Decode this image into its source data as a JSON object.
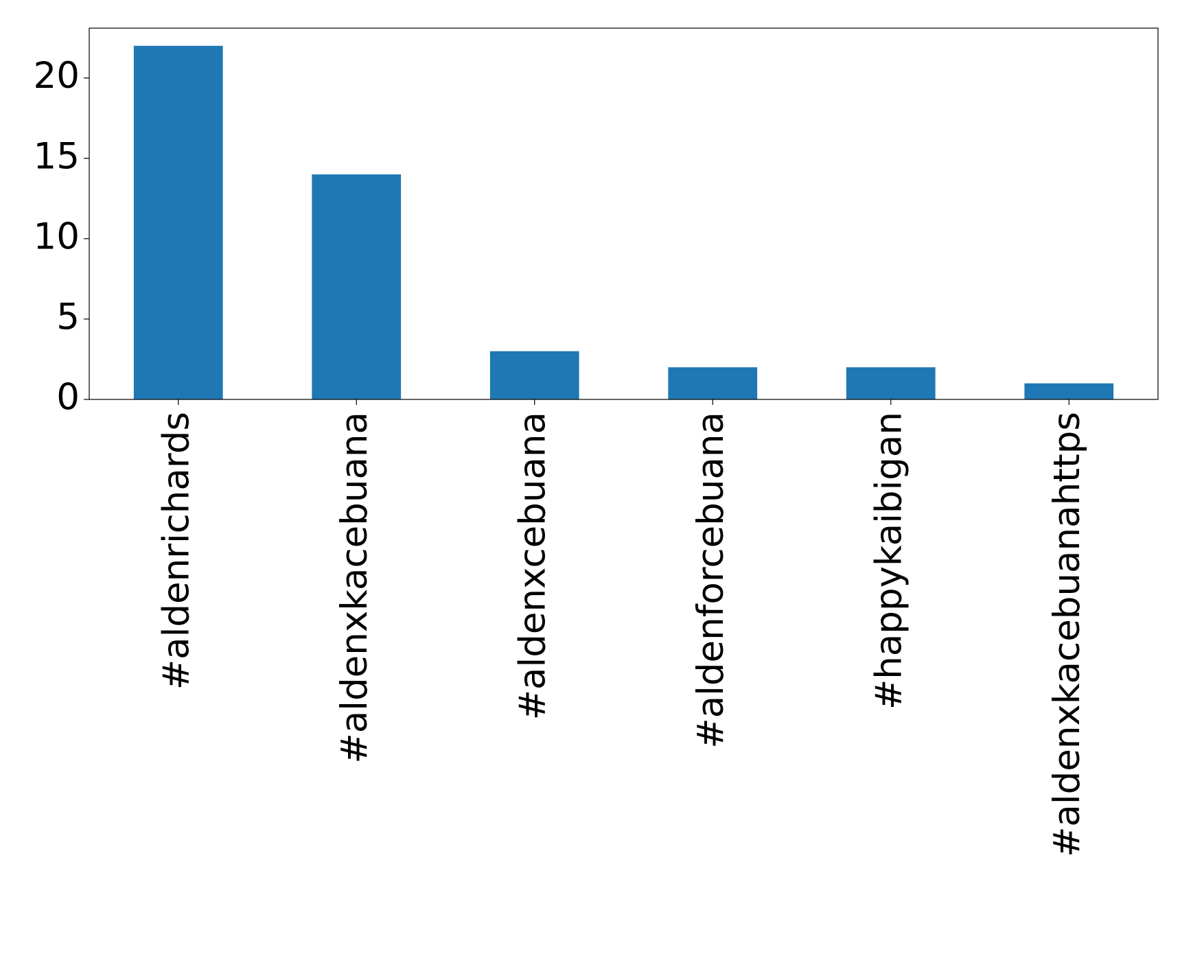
{
  "chart_data": {
    "type": "bar",
    "categories": [
      "#aldenrichards",
      "#aldenxkacebuana",
      "#aldenxcebuana",
      "#aldenforcebuana",
      "#happykaibigan",
      "#aldenxkacebuanahttps"
    ],
    "values": [
      22,
      14,
      3,
      2,
      2,
      1
    ],
    "color": "#1f77b4",
    "ylim": [
      0,
      23.1
    ],
    "yticks": [
      0,
      5,
      10,
      15,
      20
    ],
    "grid": false
  }
}
